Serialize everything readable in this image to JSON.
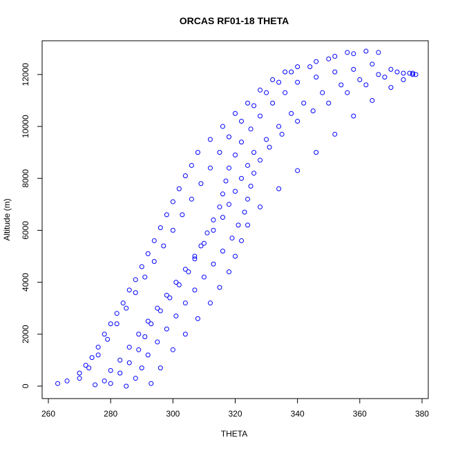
{
  "chart_data": {
    "type": "scatter",
    "title": "ORCAS RF01-18 THETA",
    "xlabel": "THETA",
    "ylabel": "Altitude (m)",
    "xlim": [
      258,
      382
    ],
    "ylim": [
      -480,
      13300
    ],
    "x_ticks": [
      260,
      280,
      300,
      320,
      340,
      360,
      380
    ],
    "y_ticks": [
      0,
      2000,
      4000,
      6000,
      8000,
      10000,
      12000
    ],
    "x_tick_labels": [
      "260",
      "280",
      "300",
      "320",
      "340",
      "360",
      "380"
    ],
    "y_tick_labels": [
      "0",
      "2000",
      "4000",
      "6000",
      "8000",
      "10000",
      "12000"
    ],
    "marker": "open-circle",
    "color": "#0000ff",
    "grid": false,
    "legend": "none",
    "series": [
      {
        "values_points": [
          [
            263,
            100
          ],
          [
            266,
            200
          ],
          [
            270,
            500
          ],
          [
            272,
            800
          ],
          [
            274,
            1100
          ],
          [
            276,
            1500
          ],
          [
            278,
            2000
          ],
          [
            280,
            2400
          ],
          [
            282,
            2800
          ],
          [
            284,
            3200
          ],
          [
            286,
            3700
          ],
          [
            288,
            4100
          ],
          [
            290,
            4600
          ],
          [
            292,
            5100
          ],
          [
            294,
            5600
          ],
          [
            296,
            6100
          ],
          [
            298,
            6600
          ],
          [
            300,
            7100
          ],
          [
            302,
            7600
          ],
          [
            304,
            8100
          ],
          [
            306,
            8500
          ],
          [
            308,
            9000
          ],
          [
            312,
            9500
          ],
          [
            316,
            10000
          ],
          [
            320,
            10500
          ],
          [
            324,
            10900
          ],
          [
            328,
            11400
          ],
          [
            332,
            11800
          ],
          [
            336,
            12100
          ],
          [
            340,
            12300
          ],
          [
            346,
            12500
          ],
          [
            352,
            12700
          ],
          [
            358,
            12800
          ],
          [
            364,
            12400
          ],
          [
            370,
            12200
          ],
          [
            376,
            12050
          ],
          [
            378,
            12000
          ]
        ]
      },
      {
        "values_points": [
          [
            275,
            50
          ],
          [
            278,
            200
          ],
          [
            280,
            600
          ],
          [
            283,
            1000
          ],
          [
            286,
            1500
          ],
          [
            289,
            2000
          ],
          [
            292,
            2500
          ],
          [
            295,
            3000
          ],
          [
            298,
            3500
          ],
          [
            301,
            4000
          ],
          [
            304,
            4500
          ],
          [
            307,
            5000
          ],
          [
            310,
            5500
          ],
          [
            313,
            6000
          ],
          [
            316,
            6500
          ],
          [
            318,
            7000
          ],
          [
            320,
            7500
          ],
          [
            322,
            8000
          ],
          [
            324,
            8500
          ],
          [
            326,
            9000
          ],
          [
            330,
            9500
          ],
          [
            334,
            10000
          ],
          [
            338,
            10500
          ],
          [
            342,
            10900
          ],
          [
            348,
            11300
          ],
          [
            354,
            11600
          ],
          [
            360,
            11800
          ],
          [
            366,
            12000
          ],
          [
            372,
            12100
          ],
          [
            377,
            12050
          ]
        ]
      },
      {
        "values_points": [
          [
            285,
            0
          ],
          [
            288,
            300
          ],
          [
            290,
            700
          ],
          [
            292,
            1200
          ],
          [
            295,
            1700
          ],
          [
            298,
            2200
          ],
          [
            301,
            2700
          ],
          [
            304,
            3200
          ],
          [
            307,
            3700
          ],
          [
            310,
            4200
          ],
          [
            313,
            4700
          ],
          [
            316,
            5200
          ],
          [
            319,
            5700
          ],
          [
            321,
            6200
          ],
          [
            323,
            6700
          ],
          [
            324,
            7200
          ],
          [
            325,
            7700
          ],
          [
            326,
            8200
          ],
          [
            328,
            8700
          ],
          [
            331,
            9200
          ],
          [
            335,
            9700
          ],
          [
            340,
            10200
          ],
          [
            345,
            10600
          ],
          [
            350,
            10900
          ],
          [
            356,
            11300
          ],
          [
            362,
            11600
          ],
          [
            368,
            11900
          ],
          [
            374,
            12050
          ]
        ]
      },
      {
        "values_points": [
          [
            270,
            300
          ],
          [
            273,
            700
          ],
          [
            276,
            1200
          ],
          [
            279,
            1800
          ],
          [
            282,
            2400
          ],
          [
            285,
            3000
          ],
          [
            288,
            3600
          ],
          [
            291,
            4200
          ],
          [
            294,
            4800
          ],
          [
            297,
            5400
          ],
          [
            300,
            6000
          ],
          [
            303,
            6600
          ],
          [
            306,
            7200
          ],
          [
            309,
            7800
          ],
          [
            312,
            8400
          ],
          [
            315,
            9000
          ],
          [
            318,
            9600
          ],
          [
            322,
            10200
          ],
          [
            326,
            10800
          ],
          [
            330,
            11300
          ],
          [
            334,
            11700
          ],
          [
            338,
            12100
          ],
          [
            344,
            12300
          ],
          [
            350,
            12600
          ],
          [
            356,
            12850
          ],
          [
            362,
            12900
          ],
          [
            366,
            12850
          ]
        ]
      },
      {
        "values_points": [
          [
            280,
            100
          ],
          [
            283,
            500
          ],
          [
            286,
            900
          ],
          [
            289,
            1400
          ],
          [
            291,
            1900
          ],
          [
            293,
            2400
          ],
          [
            296,
            2900
          ],
          [
            299,
            3400
          ],
          [
            302,
            3900
          ],
          [
            305,
            4400
          ],
          [
            307,
            4900
          ],
          [
            309,
            5400
          ],
          [
            311,
            5900
          ],
          [
            313,
            6400
          ],
          [
            315,
            6900
          ],
          [
            316,
            7400
          ],
          [
            317,
            7900
          ],
          [
            318,
            8400
          ],
          [
            320,
            8900
          ],
          [
            322,
            9400
          ],
          [
            325,
            9900
          ],
          [
            328,
            10400
          ],
          [
            332,
            10900
          ],
          [
            336,
            11300
          ],
          [
            340,
            11700
          ],
          [
            346,
            11900
          ],
          [
            352,
            12100
          ],
          [
            358,
            12200
          ]
        ]
      },
      {
        "values_points": [
          [
            293,
            100
          ],
          [
            296,
            700
          ],
          [
            300,
            1400
          ],
          [
            304,
            2000
          ],
          [
            308,
            2600
          ],
          [
            312,
            3200
          ],
          [
            315,
            3800
          ],
          [
            318,
            4400
          ],
          [
            320,
            5000
          ],
          [
            322,
            5600
          ],
          [
            324,
            6200
          ],
          [
            328,
            6900
          ],
          [
            334,
            7600
          ],
          [
            340,
            8300
          ],
          [
            346,
            9000
          ],
          [
            352,
            9700
          ],
          [
            358,
            10400
          ],
          [
            364,
            11000
          ],
          [
            370,
            11500
          ],
          [
            374,
            11800
          ],
          [
            377,
            12000
          ]
        ]
      }
    ]
  }
}
